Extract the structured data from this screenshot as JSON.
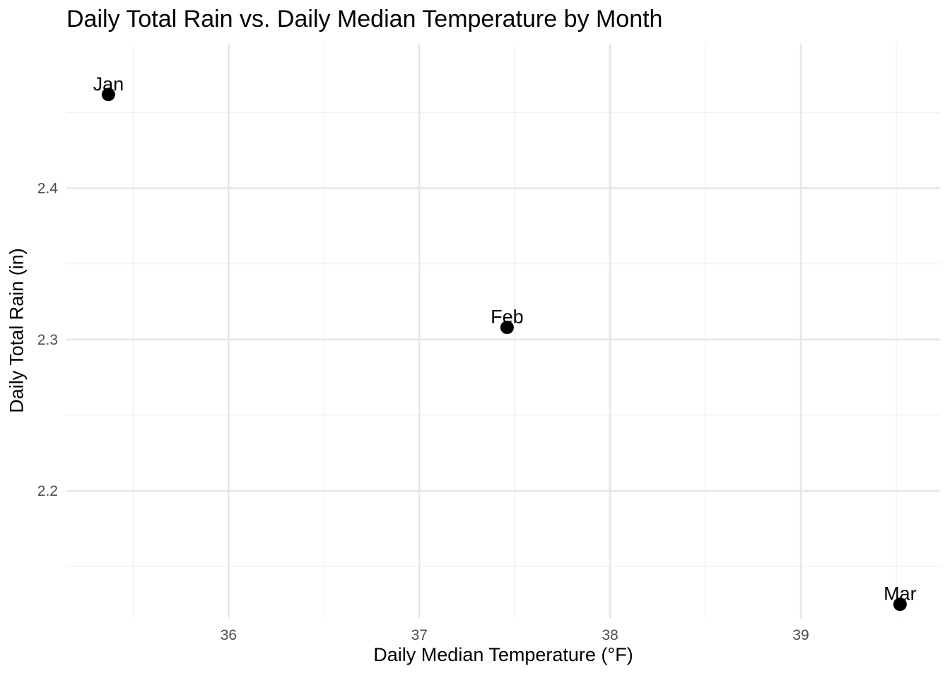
{
  "chart_data": {
    "type": "scatter",
    "title": "Daily Total Rain vs. Daily Median Temperature by Month",
    "xlabel": "Daily Median Temperature (°F)",
    "ylabel": "Daily Total Rain (in)",
    "xlim": [
      35.15,
      39.73
    ],
    "ylim": [
      2.1155,
      2.4955
    ],
    "x_ticks": [
      36,
      37,
      38,
      39
    ],
    "x_tick_labels": [
      "36",
      "37",
      "38",
      "39"
    ],
    "x_minor_ticks": [
      35.5,
      36.5,
      37.5,
      38.5,
      39.5
    ],
    "y_ticks": [
      2.2,
      2.3,
      2.4
    ],
    "y_tick_labels": [
      "2.2",
      "2.3",
      "2.4"
    ],
    "y_minor_ticks": [
      2.15,
      2.25,
      2.35,
      2.45
    ],
    "grid": true,
    "legend": "none",
    "colors": {
      "point": "#000000",
      "grid_major": "#e6e6e6",
      "grid_minor": "#f0f0f0",
      "tick_text": "#4d4d4d"
    },
    "points": [
      {
        "label": "Jan",
        "x": 35.37,
        "y": 2.462
      },
      {
        "label": "Feb",
        "x": 37.46,
        "y": 2.308
      },
      {
        "label": "Mar",
        "x": 39.52,
        "y": 2.125
      }
    ]
  }
}
